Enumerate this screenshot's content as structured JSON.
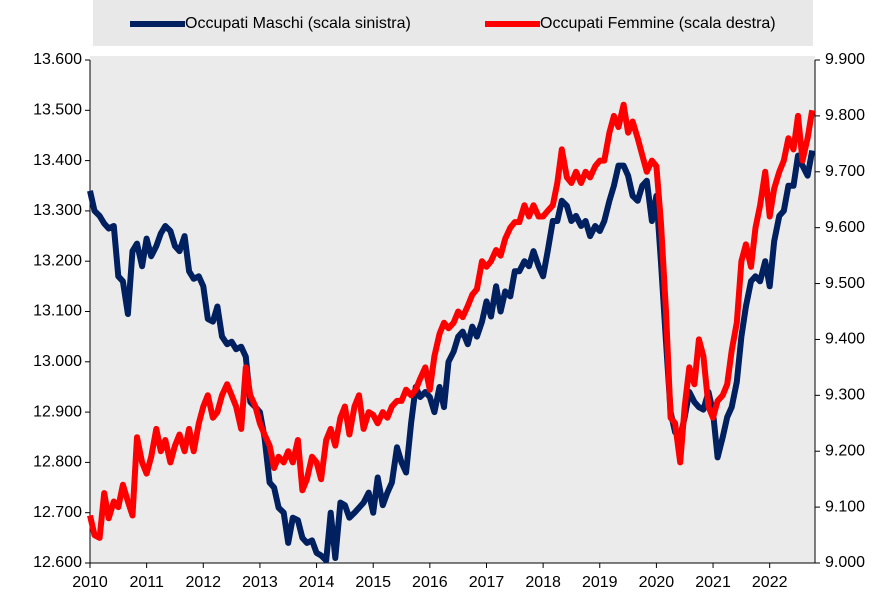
{
  "chart_data": {
    "type": "line",
    "x": [
      2010,
      2010.08,
      2010.17,
      2010.25,
      2010.33,
      2010.42,
      2010.5,
      2010.58,
      2010.67,
      2010.75,
      2010.83,
      2010.92,
      2011,
      2011.08,
      2011.17,
      2011.25,
      2011.33,
      2011.42,
      2011.5,
      2011.58,
      2011.67,
      2011.75,
      2011.83,
      2011.92,
      2012,
      2012.08,
      2012.17,
      2012.25,
      2012.33,
      2012.42,
      2012.5,
      2012.58,
      2012.67,
      2012.75,
      2012.83,
      2012.92,
      2013,
      2013.08,
      2013.17,
      2013.25,
      2013.33,
      2013.42,
      2013.5,
      2013.58,
      2013.67,
      2013.75,
      2013.83,
      2013.92,
      2014,
      2014.08,
      2014.17,
      2014.25,
      2014.33,
      2014.42,
      2014.5,
      2014.58,
      2014.67,
      2014.75,
      2014.83,
      2014.92,
      2015,
      2015.08,
      2015.17,
      2015.25,
      2015.33,
      2015.42,
      2015.5,
      2015.58,
      2015.67,
      2015.75,
      2015.83,
      2015.92,
      2016,
      2016.08,
      2016.17,
      2016.25,
      2016.33,
      2016.42,
      2016.5,
      2016.58,
      2016.67,
      2016.75,
      2016.83,
      2016.92,
      2017,
      2017.08,
      2017.17,
      2017.25,
      2017.33,
      2017.42,
      2017.5,
      2017.58,
      2017.67,
      2017.75,
      2017.83,
      2017.92,
      2018,
      2018.08,
      2018.17,
      2018.25,
      2018.33,
      2018.42,
      2018.5,
      2018.58,
      2018.67,
      2018.75,
      2018.83,
      2018.92,
      2019,
      2019.08,
      2019.17,
      2019.25,
      2019.33,
      2019.42,
      2019.5,
      2019.58,
      2019.67,
      2019.75,
      2019.83,
      2019.92,
      2020,
      2020.08,
      2020.17,
      2020.25,
      2020.33,
      2020.42,
      2020.5,
      2020.58,
      2020.67,
      2020.75,
      2020.83,
      2020.92,
      2021,
      2021.08,
      2021.17,
      2021.25,
      2021.33,
      2021.42,
      2021.5,
      2021.58,
      2021.67,
      2021.75,
      2021.83,
      2021.92,
      2022,
      2022.08,
      2022.17,
      2022.25,
      2022.33,
      2022.42,
      2022.5,
      2022.58,
      2022.67,
      2022.75
    ],
    "series": [
      {
        "name": "Occupati Maschi (scala sinistra)",
        "color": "#002060",
        "values": [
          13340,
          13300,
          13290,
          13275,
          13265,
          13270,
          13170,
          13160,
          13095,
          13220,
          13235,
          13190,
          13245,
          13210,
          13230,
          13255,
          13270,
          13260,
          13230,
          13220,
          13250,
          13180,
          13165,
          13170,
          13150,
          13085,
          13080,
          13110,
          13050,
          13035,
          13040,
          13025,
          13030,
          13010,
          12920,
          12910,
          12900,
          12850,
          12760,
          12750,
          12710,
          12700,
          12640,
          12690,
          12685,
          12650,
          12640,
          12645,
          12620,
          12615,
          12605,
          12700,
          12610,
          12720,
          12715,
          12690,
          12700,
          12710,
          12720,
          12740,
          12700,
          12770,
          12715,
          12740,
          12760,
          12830,
          12800,
          12780,
          12880,
          12950,
          12930,
          12940,
          12930,
          12900,
          12950,
          12910,
          13000,
          13020,
          13050,
          13060,
          13035,
          13070,
          13050,
          13080,
          13120,
          13090,
          13150,
          13100,
          13140,
          13130,
          13180,
          13180,
          13200,
          13190,
          13220,
          13190,
          13170,
          13220,
          13280,
          13280,
          13320,
          13310,
          13280,
          13290,
          13270,
          13280,
          13250,
          13270,
          13260,
          13280,
          13320,
          13350,
          13390,
          13390,
          13370,
          13330,
          13320,
          13350,
          13360,
          13280,
          13330,
          13200,
          13040,
          12900,
          12860,
          12850,
          12890,
          12940,
          12920,
          12910,
          12905,
          12940,
          12900,
          12810,
          12850,
          12890,
          12910,
          12960,
          13050,
          13110,
          13160,
          13170,
          13160,
          13200,
          13150,
          13240,
          13290,
          13300,
          13350,
          13350,
          13410,
          13390,
          13370,
          13420
        ]
      },
      {
        "name": "Occupati Femmine (scala destra)",
        "color": "#ff0000",
        "axis": "y2",
        "values": [
          9085,
          9050,
          9045,
          9125,
          9080,
          9110,
          9100,
          9140,
          9110,
          9085,
          9225,
          9180,
          9160,
          9190,
          9240,
          9200,
          9220,
          9180,
          9210,
          9230,
          9200,
          9240,
          9200,
          9250,
          9280,
          9300,
          9260,
          9270,
          9300,
          9320,
          9300,
          9280,
          9240,
          9350,
          9300,
          9280,
          9250,
          9230,
          9210,
          9170,
          9190,
          9180,
          9200,
          9180,
          9220,
          9130,
          9150,
          9190,
          9180,
          9150,
          9220,
          9240,
          9210,
          9260,
          9280,
          9230,
          9280,
          9300,
          9240,
          9270,
          9265,
          9250,
          9270,
          9260,
          9280,
          9290,
          9290,
          9310,
          9300,
          9310,
          9330,
          9350,
          9310,
          9370,
          9410,
          9430,
          9420,
          9430,
          9450,
          9440,
          9460,
          9480,
          9490,
          9540,
          9530,
          9540,
          9560,
          9550,
          9580,
          9600,
          9610,
          9610,
          9640,
          9620,
          9640,
          9620,
          9620,
          9630,
          9640,
          9680,
          9740,
          9690,
          9680,
          9700,
          9680,
          9700,
          9690,
          9710,
          9720,
          9720,
          9770,
          9800,
          9780,
          9820,
          9770,
          9790,
          9760,
          9730,
          9700,
          9720,
          9710,
          9610,
          9450,
          9260,
          9250,
          9180,
          9280,
          9350,
          9320,
          9400,
          9370,
          9280,
          9260,
          9290,
          9300,
          9320,
          9380,
          9430,
          9540,
          9570,
          9530,
          9600,
          9640,
          9700,
          9620,
          9670,
          9700,
          9720,
          9760,
          9740,
          9800,
          9720,
          9760,
          9810
        ]
      }
    ],
    "xlim": [
      2010,
      2022.8
    ],
    "xticks": [
      2010,
      2011,
      2012,
      2013,
      2014,
      2015,
      2016,
      2017,
      2018,
      2019,
      2020,
      2021,
      2022
    ],
    "ylim": [
      12600,
      13600
    ],
    "yticks": [
      {
        "value": 12600,
        "label": "12.600"
      },
      {
        "value": 12700,
        "label": "12.700"
      },
      {
        "value": 12800,
        "label": "12.800"
      },
      {
        "value": 12900,
        "label": "12.900"
      },
      {
        "value": 13000,
        "label": "13.000"
      },
      {
        "value": 13100,
        "label": "13.100"
      },
      {
        "value": 13200,
        "label": "13.200"
      },
      {
        "value": 13300,
        "label": "13.300"
      },
      {
        "value": 13400,
        "label": "13.400"
      },
      {
        "value": 13500,
        "label": "13.500"
      },
      {
        "value": 13600,
        "label": "13.600"
      }
    ],
    "y2lim": [
      9000,
      9900
    ],
    "y2ticks": [
      {
        "value": 9000,
        "label": "9.000"
      },
      {
        "value": 9100,
        "label": "9.100"
      },
      {
        "value": 9200,
        "label": "9.200"
      },
      {
        "value": 9300,
        "label": "9.300"
      },
      {
        "value": 9400,
        "label": "9.400"
      },
      {
        "value": 9500,
        "label": "9.500"
      },
      {
        "value": 9600,
        "label": "9.600"
      },
      {
        "value": 9700,
        "label": "9.700"
      },
      {
        "value": 9800,
        "label": "9.800"
      },
      {
        "value": 9900,
        "label": "9.900"
      }
    ],
    "legend": "top"
  }
}
